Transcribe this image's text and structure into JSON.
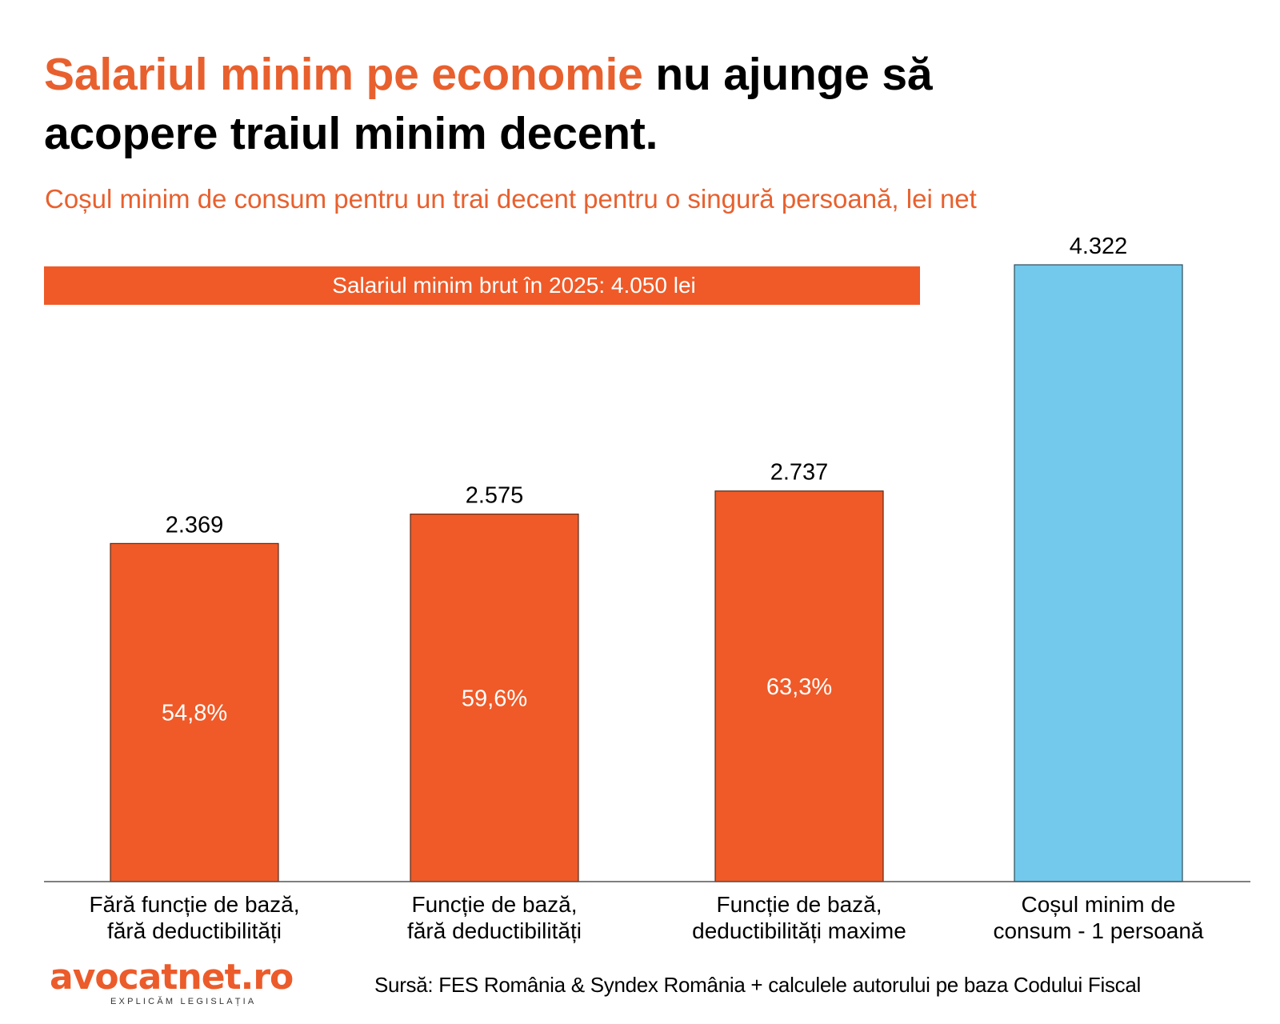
{
  "header": {
    "title_highlight": "Salariul minim pe economie",
    "title_rest_line1": " nu ajunge să",
    "title_line2": "acopere traiul minim decent.",
    "subtitle": "Coșul minim de consum pentru un trai decent pentru o singură persoană, lei net"
  },
  "colors": {
    "accent": "#EF5A28",
    "title_accent": "#E8602E",
    "bar_orange": "#EF5A28",
    "bar_blue": "#72C9EC",
    "bar_stroke": "#5a2a18",
    "baseline": "#555555"
  },
  "chart_data": {
    "type": "bar",
    "title": "Salariul minim pe economie nu ajunge să acopere traiul minim decent.",
    "subtitle": "Coșul minim de consum pentru un trai decent pentru o singură persoană, lei net",
    "xlabel": "",
    "ylabel": "lei net",
    "ylim": [
      0,
      4322
    ],
    "grid": false,
    "categories": [
      [
        "Fără funcție de bază,",
        "fără deductibilități"
      ],
      [
        "Funcție de bază,",
        "fără deductibilități"
      ],
      [
        "Funcție de bază,",
        "deductibilități maxime"
      ],
      [
        "Coșul minim de",
        "consum - 1 persoană"
      ]
    ],
    "values": [
      2369,
      2575,
      2737,
      4322
    ],
    "value_labels": [
      "2.369",
      "2.575",
      "2.737",
      "4.322"
    ],
    "inner_labels": [
      "54,8%",
      "59,6%",
      "63,3%",
      ""
    ],
    "bar_colors": [
      "orange",
      "orange",
      "orange",
      "blue"
    ],
    "annotation_band": {
      "label": "Salariul minim brut în 2025: 4.050 lei",
      "value": 4050,
      "spans_categories": [
        0,
        1,
        2
      ]
    }
  },
  "footer": {
    "logo_text": "avocatnet.ro",
    "logo_tagline": "EXPLICĂM LEGISLAȚIA",
    "source": "Sursă:  FES România & Syndex România + calculele autorului pe baza Codului Fiscal"
  }
}
